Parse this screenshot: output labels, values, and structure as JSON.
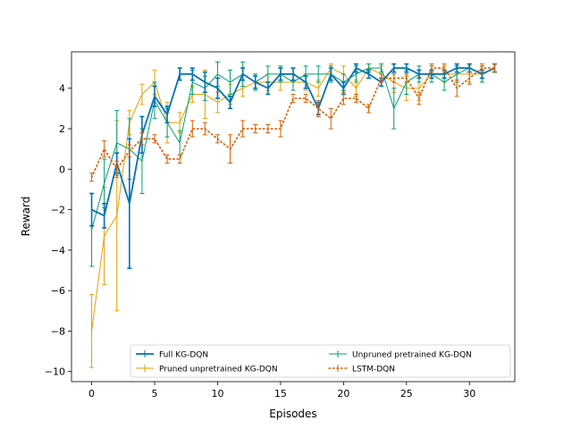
{
  "chart_data": {
    "type": "line",
    "title": "",
    "xlabel": "Episodes",
    "ylabel": "Reward",
    "xlim": [
      -1.6,
      33.6
    ],
    "ylim": [
      -10.5,
      5.8
    ],
    "xticks": [
      0,
      5,
      10,
      15,
      20,
      25,
      30
    ],
    "yticks": [
      -10,
      -8,
      -6,
      -4,
      -2,
      0,
      2,
      4
    ],
    "grid": false,
    "legend": {
      "placement": "lower-right",
      "columns": 2
    },
    "x": [
      0,
      1,
      2,
      3,
      4,
      5,
      6,
      7,
      8,
      9,
      10,
      11,
      12,
      13,
      14,
      15,
      16,
      17,
      18,
      19,
      20,
      21,
      22,
      23,
      24,
      25,
      26,
      27,
      28,
      29,
      30,
      31,
      32
    ],
    "series": [
      {
        "name": "Full KG-DQN",
        "color": "#0072b2",
        "style": "solid-thick",
        "values": [
          -2.0,
          -2.3,
          0.3,
          -1.7,
          1.7,
          3.6,
          2.7,
          4.7,
          4.7,
          4.3,
          4.0,
          3.3,
          4.7,
          4.3,
          4.0,
          4.7,
          4.7,
          4.3,
          3.0,
          4.7,
          4.0,
          5.0,
          4.7,
          4.3,
          5.0,
          5.0,
          4.7,
          4.7,
          4.7,
          5.0,
          5.0,
          4.7,
          5.0
        ],
        "errors": [
          0.8,
          0.6,
          0.5,
          3.2,
          0.9,
          0.5,
          0.4,
          0.3,
          0.3,
          0.5,
          0.5,
          0.3,
          0.3,
          0.3,
          0.3,
          0.3,
          0.3,
          0.3,
          0.3,
          0.3,
          0.3,
          0.2,
          0.2,
          0.2,
          0.2,
          0.2,
          0.2,
          0.2,
          0.2,
          0.2,
          0.2,
          0.2,
          0.2
        ]
      },
      {
        "name": "Pruned unpretrained KG-DQN",
        "color": "#e69f00",
        "style": "solid-thin",
        "values": [
          -8.0,
          -3.3,
          -2.3,
          2.3,
          3.7,
          4.3,
          2.3,
          2.3,
          3.7,
          3.7,
          3.3,
          3.7,
          4.0,
          4.3,
          4.3,
          4.3,
          4.3,
          4.3,
          4.0,
          5.0,
          4.7,
          4.0,
          5.0,
          4.7,
          4.3,
          4.0,
          4.0,
          4.7,
          4.7,
          4.7,
          4.7,
          4.7,
          5.0
        ],
        "errors": [
          1.8,
          2.4,
          4.7,
          0.6,
          0.5,
          0.6,
          1.0,
          0.5,
          0.4,
          1.2,
          0.5,
          0.5,
          0.4,
          0.4,
          0.4,
          0.4,
          0.4,
          0.4,
          0.4,
          0.2,
          0.4,
          0.4,
          0.2,
          0.4,
          0.5,
          0.6,
          0.6,
          0.4,
          0.4,
          0.4,
          0.4,
          0.4,
          0.2
        ]
      },
      {
        "name": "Unpruned pretrained KG-DQN",
        "color": "#009e73",
        "style": "solid-thin",
        "values": [
          -3.0,
          -0.7,
          1.3,
          1.0,
          0.4,
          3.4,
          2.3,
          1.3,
          4.3,
          4.0,
          4.7,
          4.3,
          4.7,
          4.3,
          4.7,
          4.7,
          4.3,
          4.7,
          4.7,
          4.7,
          4.3,
          4.7,
          5.0,
          5.0,
          3.0,
          4.3,
          4.7,
          4.7,
          4.3,
          4.7,
          5.0,
          4.7,
          5.0
        ],
        "errors": [
          1.8,
          1.2,
          1.6,
          1.5,
          1.6,
          0.9,
          0.7,
          0.6,
          0.6,
          0.6,
          0.6,
          0.6,
          0.6,
          0.4,
          0.4,
          0.4,
          0.4,
          0.4,
          0.4,
          0.4,
          0.4,
          0.4,
          0.2,
          0.2,
          1.0,
          0.6,
          0.4,
          0.4,
          0.4,
          0.4,
          0.2,
          0.4,
          0.2
        ]
      },
      {
        "name": "LSTM-DQN",
        "color": "#d55e00",
        "style": "dotted",
        "values": [
          -0.4,
          1.0,
          0.0,
          0.9,
          1.5,
          1.5,
          0.5,
          0.5,
          2.0,
          2.0,
          1.5,
          1.0,
          2.0,
          2.0,
          2.0,
          2.0,
          3.5,
          3.5,
          3.0,
          2.5,
          3.5,
          3.5,
          3.0,
          4.5,
          4.5,
          4.5,
          3.5,
          5.0,
          5.0,
          4.0,
          4.5,
          5.0,
          5.0
        ],
        "errors": [
          0.2,
          0.4,
          0.4,
          0.3,
          0.3,
          0.2,
          0.2,
          0.2,
          0.4,
          0.3,
          0.2,
          0.7,
          0.4,
          0.2,
          0.2,
          0.4,
          0.2,
          0.2,
          0.4,
          0.5,
          0.3,
          0.2,
          0.2,
          0.2,
          0.2,
          0.2,
          0.3,
          0.2,
          0.2,
          0.4,
          0.3,
          0.2,
          0.2
        ]
      }
    ]
  }
}
